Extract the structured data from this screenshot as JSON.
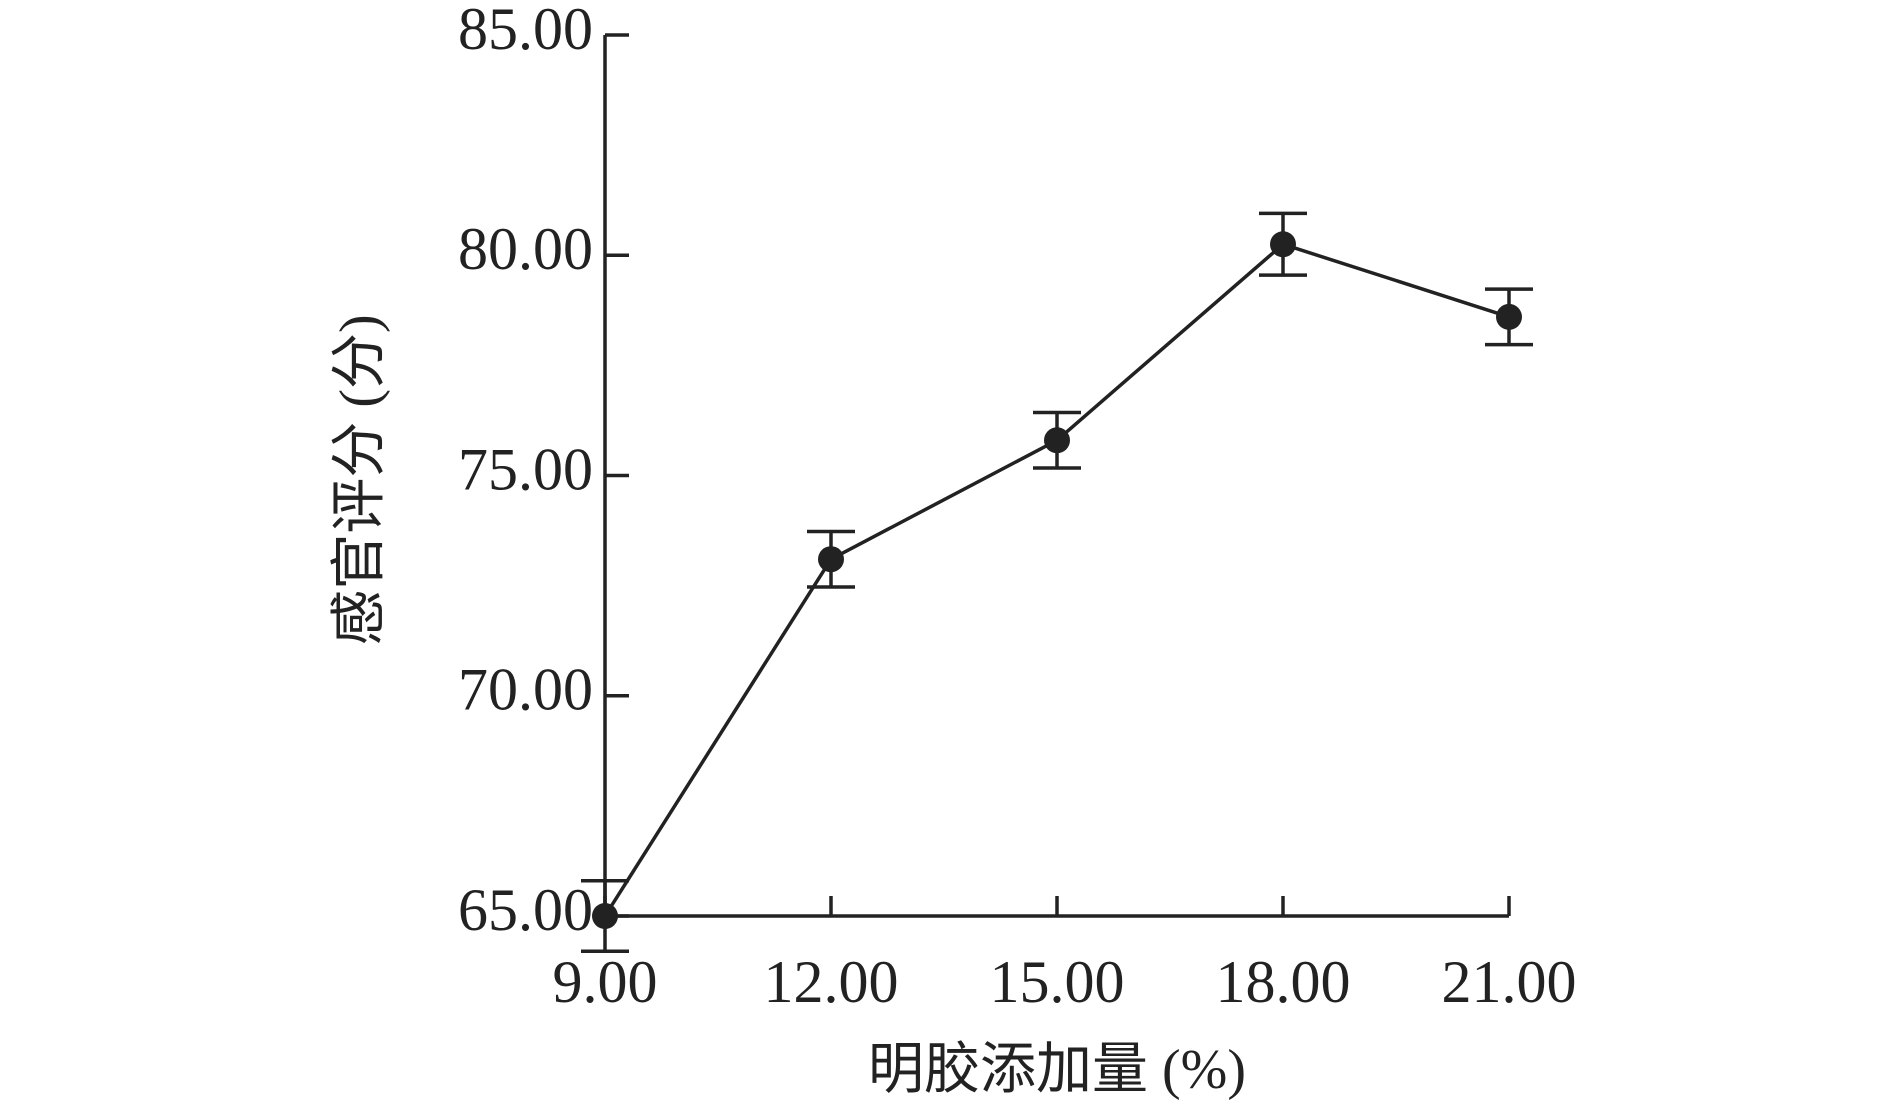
{
  "chart_data": {
    "type": "line",
    "x_label": "明胶添加量 (%)",
    "y_label": "感官评分 (分)",
    "x": [
      9,
      12,
      15,
      18,
      21
    ],
    "values": [
      65.0,
      73.1,
      75.8,
      80.25,
      78.6
    ],
    "errors": [
      0.8,
      0.63,
      0.63,
      0.7,
      0.63
    ],
    "color": "#222222",
    "xlim": [
      9,
      21
    ],
    "xticks": [
      {
        "value": 9,
        "label": "9.00"
      },
      {
        "value": 12,
        "label": "12.00"
      },
      {
        "value": 15,
        "label": "15.00"
      },
      {
        "value": 18,
        "label": "18.00"
      },
      {
        "value": 21,
        "label": "21.00"
      }
    ],
    "ylim": [
      65,
      85
    ],
    "yticks": [
      {
        "value": 65,
        "label": "65.00"
      },
      {
        "value": 70,
        "label": "70.00"
      },
      {
        "value": 75,
        "label": "75.00"
      },
      {
        "value": 80,
        "label": "80.00"
      },
      {
        "value": 85,
        "label": "85.00"
      }
    ],
    "grid": false
  }
}
